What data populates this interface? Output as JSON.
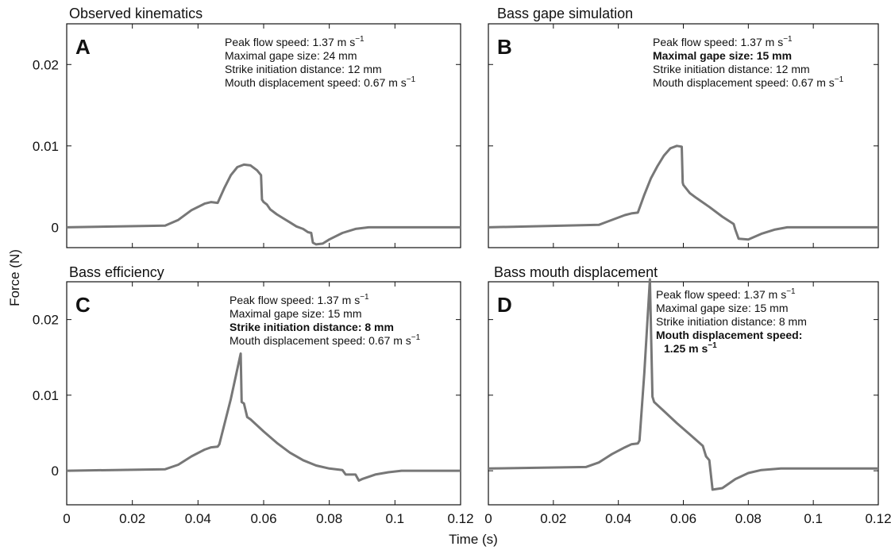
{
  "figure": {
    "shared_ylabel": "Force (N)",
    "shared_xlabel": "Time (s)"
  },
  "chart_data": [
    {
      "id": "A",
      "type": "line",
      "title": "Observed kinematics",
      "panel_label": "A",
      "xlabel": "",
      "ylabel": "Force (N)",
      "xlim": [
        0,
        0.12
      ],
      "ylim": [
        -0.0025,
        0.025
      ],
      "x_ticks": [
        0,
        0.02,
        0.04,
        0.06,
        0.08,
        0.1,
        0.12
      ],
      "x_tick_labels_shown": false,
      "y_ticks": [
        0,
        0.01,
        0.02
      ],
      "y_tick_labels": [
        "0",
        "0.01",
        "0.02"
      ],
      "y_tick_labels_shown": true,
      "grid": false,
      "line_color": "#777777",
      "annotations": [
        {
          "text": "Peak flow speed: 1.37 m s",
          "sup": "−1",
          "bold": false
        },
        {
          "text": "Maximal gape size: 24 mm",
          "bold": false
        },
        {
          "text": "Strike initiation distance: 12 mm",
          "bold": false
        },
        {
          "text": "Mouth displacement speed: 0.67 m s",
          "sup": "−1",
          "bold": false
        }
      ],
      "series": [
        {
          "x": [
            0,
            0.03,
            0.034,
            0.038,
            0.042,
            0.044,
            0.046,
            0.048,
            0.05,
            0.052,
            0.054,
            0.056,
            0.058,
            0.0592,
            0.0595,
            0.06,
            0.061,
            0.062,
            0.064,
            0.066,
            0.068,
            0.07,
            0.072,
            0.0735,
            0.0745,
            0.075,
            0.076,
            0.078,
            0.08,
            0.084,
            0.088,
            0.092,
            0.096,
            0.1,
            0.12
          ],
          "y": [
            0,
            0.0002,
            0.0009,
            0.0021,
            0.0029,
            0.0031,
            0.003,
            0.0048,
            0.0064,
            0.0074,
            0.0077,
            0.0076,
            0.007,
            0.0064,
            0.0034,
            0.0031,
            0.0028,
            0.0022,
            0.0016,
            0.0011,
            0.0006,
            0.0001,
            -0.0002,
            -0.0006,
            -0.0007,
            -0.0019,
            -0.0021,
            -0.002,
            -0.0015,
            -0.0007,
            -0.0002,
            0.0,
            0.0,
            0.0,
            0.0
          ]
        }
      ]
    },
    {
      "id": "B",
      "type": "line",
      "title": "Bass gape simulation",
      "panel_label": "B",
      "xlabel": "",
      "ylabel": "",
      "xlim": [
        0,
        0.12
      ],
      "ylim": [
        -0.0025,
        0.025
      ],
      "x_ticks": [
        0,
        0.02,
        0.04,
        0.06,
        0.08,
        0.1,
        0.12
      ],
      "x_tick_labels_shown": false,
      "y_ticks": [
        0,
        0.01,
        0.02
      ],
      "y_tick_labels_shown": false,
      "grid": false,
      "line_color": "#777777",
      "annotations": [
        {
          "text": "Peak flow speed: 1.37 m s",
          "sup": "−1",
          "bold": false
        },
        {
          "text": "Maximal gape size: 15 mm",
          "bold": true
        },
        {
          "text": "Strike initiation distance: 12 mm",
          "bold": false
        },
        {
          "text": "Mouth displacement speed: 0.67 m s",
          "sup": "−1",
          "bold": false
        }
      ],
      "series": [
        {
          "x": [
            0,
            0.034,
            0.038,
            0.042,
            0.044,
            0.046,
            0.048,
            0.05,
            0.052,
            0.054,
            0.056,
            0.058,
            0.0595,
            0.0598,
            0.06,
            0.062,
            0.064,
            0.068,
            0.072,
            0.0755,
            0.076,
            0.077,
            0.08,
            0.084,
            0.088,
            0.092,
            0.096,
            0.1,
            0.12
          ],
          "y": [
            0,
            0.0003,
            0.0009,
            0.0015,
            0.0017,
            0.0018,
            0.004,
            0.006,
            0.0075,
            0.0088,
            0.0097,
            0.01,
            0.0099,
            0.0055,
            0.0052,
            0.0042,
            0.0036,
            0.0025,
            0.0013,
            0.0004,
            -0.0003,
            -0.0014,
            -0.0015,
            -0.0008,
            -0.0003,
            0.0,
            0.0,
            0.0,
            0.0
          ]
        }
      ]
    },
    {
      "id": "C",
      "type": "line",
      "title": "Bass efficiency",
      "panel_label": "C",
      "xlabel": "",
      "ylabel": "Force (N)",
      "xlim": [
        0,
        0.12
      ],
      "ylim": [
        -0.0045,
        0.025
      ],
      "x_ticks": [
        0,
        0.02,
        0.04,
        0.06,
        0.08,
        0.1,
        0.12
      ],
      "x_tick_labels": [
        "0",
        "0.02",
        "0.04",
        "0.06",
        "0.08",
        "0.1",
        "0.12"
      ],
      "x_tick_labels_shown": true,
      "y_ticks": [
        0,
        0.01,
        0.02
      ],
      "y_tick_labels": [
        "0",
        "0.01",
        "0.02"
      ],
      "y_tick_labels_shown": true,
      "grid": false,
      "line_color": "#777777",
      "annotations": [
        {
          "text": "Peak flow speed: 1.37 m s",
          "sup": "−1",
          "bold": false
        },
        {
          "text": "Maximal gape size: 15 mm",
          "bold": false
        },
        {
          "text": "Strike initiation distance: 8 mm",
          "bold": true
        },
        {
          "text": "Mouth displacement speed: 0.67 m s",
          "sup": "−1",
          "bold": false
        }
      ],
      "series": [
        {
          "x": [
            0,
            0.03,
            0.034,
            0.038,
            0.042,
            0.044,
            0.046,
            0.0465,
            0.05,
            0.053,
            0.0533,
            0.054,
            0.055,
            0.056,
            0.06,
            0.064,
            0.068,
            0.072,
            0.076,
            0.08,
            0.084,
            0.085,
            0.088,
            0.089,
            0.09,
            0.094,
            0.098,
            0.102,
            0.12
          ],
          "y": [
            0,
            0.0002,
            0.0008,
            0.0019,
            0.0028,
            0.0031,
            0.0032,
            0.0035,
            0.0095,
            0.0155,
            0.0091,
            0.0089,
            0.0071,
            0.0068,
            0.0052,
            0.0037,
            0.0024,
            0.0014,
            0.0007,
            0.0003,
            0.0001,
            -0.0005,
            -0.0005,
            -0.0013,
            -0.0011,
            -0.0005,
            -0.0002,
            0.0,
            0.0
          ]
        }
      ]
    },
    {
      "id": "D",
      "type": "line",
      "title": "Bass mouth displacement",
      "panel_label": "D",
      "xlabel": "",
      "ylabel": "",
      "xlim": [
        0,
        0.12
      ],
      "ylim": [
        -0.0045,
        0.025
      ],
      "x_ticks": [
        0,
        0.02,
        0.04,
        0.06,
        0.08,
        0.1,
        0.12
      ],
      "x_tick_labels": [
        "0",
        "0.02",
        "0.04",
        "0.06",
        "0.08",
        "0.1",
        "0.12"
      ],
      "x_tick_labels_shown": true,
      "y_ticks": [
        0,
        0.01,
        0.02
      ],
      "y_tick_labels_shown": false,
      "grid": false,
      "line_color": "#777777",
      "annotations": [
        {
          "text": "Peak flow speed: 1.37 m s",
          "sup": "−1",
          "bold": false
        },
        {
          "text": "Maximal gape size: 15 mm",
          "bold": false
        },
        {
          "text": "Strike initiation distance: 8 mm",
          "bold": false
        },
        {
          "text": "Mouth displacement speed:",
          "bold": true
        },
        {
          "text": "1.25 m s",
          "sup": "−1",
          "bold": true
        }
      ],
      "series": [
        {
          "x": [
            0,
            0.03,
            0.034,
            0.038,
            0.042,
            0.044,
            0.046,
            0.0465,
            0.048,
            0.0497,
            0.0505,
            0.051,
            0.054,
            0.058,
            0.062,
            0.066,
            0.067,
            0.068,
            0.069,
            0.072,
            0.076,
            0.08,
            0.084,
            0.09,
            0.1,
            0.12
          ],
          "y": [
            0.0003,
            0.0005,
            0.0011,
            0.0022,
            0.0031,
            0.0035,
            0.0036,
            0.004,
            0.013,
            0.0253,
            0.0098,
            0.0091,
            0.0079,
            0.0063,
            0.0048,
            0.0033,
            0.0019,
            0.0014,
            -0.0025,
            -0.0023,
            -0.0011,
            -0.0003,
            0.0001,
            0.0003,
            0.0003,
            0.0003
          ]
        }
      ]
    }
  ]
}
